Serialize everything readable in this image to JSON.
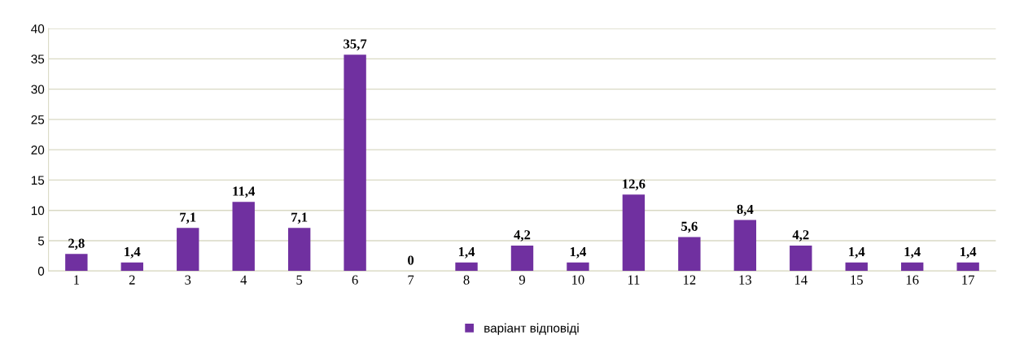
{
  "chart_data": {
    "type": "bar",
    "categories": [
      "1",
      "2",
      "3",
      "4",
      "5",
      "6",
      "7",
      "8",
      "9",
      "10",
      "11",
      "12",
      "13",
      "14",
      "15",
      "16",
      "17"
    ],
    "series": [
      {
        "name": "варіант відповіді",
        "color": "#7030a0",
        "values": [
          2.8,
          1.4,
          7.1,
          11.4,
          7.1,
          35.7,
          0,
          1.4,
          4.2,
          1.4,
          12.6,
          5.6,
          8.4,
          4.2,
          1.4,
          1.4,
          1.4
        ],
        "value_labels": [
          "2,8",
          "1,4",
          "7,1",
          "11,4",
          "7,1",
          "35,7",
          "0",
          "1,4",
          "4,2",
          "1,4",
          "12,6",
          "5,6",
          "8,4",
          "4,2",
          "1,4",
          "1,4",
          "1,4"
        ]
      }
    ],
    "ylim": [
      0,
      40
    ],
    "yticks": [
      0,
      5,
      10,
      15,
      20,
      25,
      30,
      35,
      40
    ],
    "grid": "y",
    "legend": "bottom"
  }
}
